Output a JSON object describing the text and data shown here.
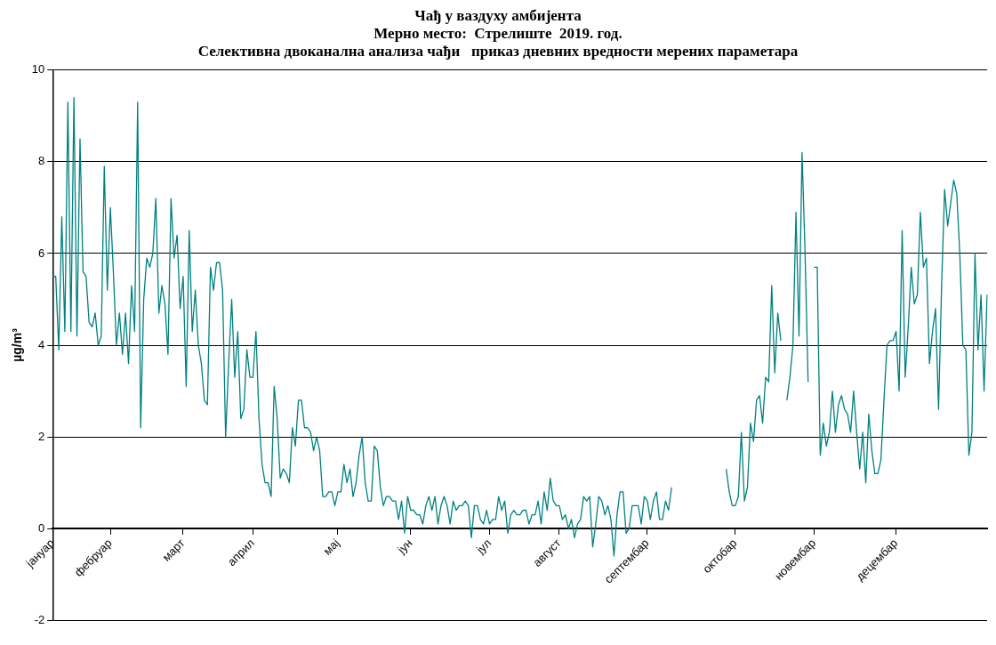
{
  "chart_data": {
    "type": "line",
    "title": "Чађ у ваздуху амбијента",
    "subtitle": "Мерно место:  Стрелиште  2019. год.\nСелективна двоканална анализа чађи   приказ дневних вредности мерених параметара",
    "ylabel": "µg/m³",
    "categories": [
      "јануар",
      null,
      null,
      null,
      null,
      null,
      null,
      null,
      null,
      null,
      null,
      null,
      null,
      null,
      null,
      null,
      null,
      null,
      null,
      "фебруар",
      null,
      null,
      null,
      null,
      null,
      null,
      null,
      null,
      null,
      null,
      null,
      null,
      null,
      null,
      null,
      null,
      null,
      null,
      null,
      null,
      null,
      null,
      null,
      "март",
      null,
      null,
      null,
      null,
      null,
      null,
      null,
      null,
      null,
      null,
      null,
      null,
      null,
      null,
      null,
      null,
      null,
      null,
      null,
      null,
      null,
      null,
      "април",
      null,
      null,
      null,
      null,
      null,
      null,
      null,
      null,
      null,
      null,
      null,
      null,
      null,
      null,
      null,
      null,
      null,
      null,
      null,
      null,
      null,
      null,
      null,
      null,
      null,
      null,
      null,
      "мај",
      null,
      null,
      null,
      null,
      null,
      null,
      null,
      null,
      null,
      null,
      null,
      null,
      null,
      null,
      null,
      null,
      null,
      null,
      null,
      null,
      null,
      null,
      null,
      "јун",
      null,
      null,
      null,
      null,
      null,
      null,
      null,
      null,
      null,
      null,
      null,
      null,
      null,
      null,
      null,
      null,
      null,
      null,
      null,
      null,
      null,
      null,
      null,
      null,
      null,
      "јул",
      null,
      null,
      null,
      null,
      null,
      null,
      null,
      null,
      null,
      null,
      null,
      null,
      null,
      null,
      null,
      null,
      null,
      null,
      null,
      null,
      null,
      null,
      "август",
      null,
      null,
      null,
      null,
      null,
      null,
      null,
      null,
      null,
      null,
      null,
      null,
      null,
      null,
      null,
      null,
      null,
      null,
      null,
      null,
      null,
      null,
      null,
      null,
      null,
      null,
      null,
      null,
      "септембар",
      null,
      null,
      null,
      null,
      null,
      null,
      null,
      null,
      null,
      null,
      null,
      null,
      null,
      null,
      null,
      null,
      null,
      null,
      null,
      null,
      null,
      null,
      null,
      null,
      null,
      null,
      null,
      null,
      "октобар",
      null,
      null,
      null,
      null,
      null,
      null,
      null,
      null,
      null,
      null,
      null,
      null,
      null,
      null,
      null,
      null,
      null,
      null,
      null,
      null,
      null,
      null,
      null,
      null,
      null,
      "новембар",
      null,
      null,
      null,
      null,
      null,
      null,
      null,
      null,
      null,
      null,
      null,
      null,
      null,
      null,
      null,
      null,
      null,
      null,
      null,
      null,
      null,
      null,
      null,
      null,
      null,
      null,
      "децембар",
      null,
      null,
      null,
      null,
      null,
      null,
      null,
      null,
      null,
      null,
      null,
      null,
      null,
      null,
      null,
      null,
      null,
      null,
      null,
      null,
      null,
      null,
      null,
      null,
      null,
      null,
      null,
      null,
      null,
      null
    ],
    "series": [
      {
        "color": "#008080",
        "values": [
          5.5,
          5.5,
          3.9,
          6.8,
          4.3,
          9.3,
          4.3,
          9.4,
          4.2,
          8.5,
          5.6,
          5.5,
          4.5,
          4.4,
          4.7,
          4.0,
          4.2,
          7.9,
          5.2,
          7.0,
          5.6,
          4.0,
          4.7,
          3.8,
          4.7,
          3.6,
          5.3,
          4.3,
          9.3,
          2.2,
          5.0,
          5.9,
          5.7,
          6.0,
          7.2,
          4.7,
          5.3,
          4.9,
          3.8,
          7.2,
          5.9,
          6.4,
          4.8,
          5.5,
          3.1,
          6.5,
          4.3,
          5.2,
          4.0,
          3.6,
          2.8,
          2.7,
          5.7,
          5.2,
          5.8,
          5.8,
          5.2,
          2.0,
          3.6,
          5.0,
          3.3,
          4.3,
          2.4,
          2.6,
          3.9,
          3.3,
          3.3,
          4.3,
          2.4,
          1.4,
          1.0,
          1.0,
          0.7,
          3.1,
          2.4,
          1.1,
          1.3,
          1.2,
          1.0,
          2.2,
          1.8,
          2.8,
          2.8,
          2.2,
          2.2,
          2.1,
          1.7,
          2.0,
          1.7,
          0.7,
          0.7,
          0.8,
          0.8,
          0.5,
          0.8,
          0.8,
          1.4,
          1.0,
          1.3,
          0.7,
          1.0,
          1.6,
          2.0,
          1.0,
          0.6,
          0.6,
          1.8,
          1.7,
          0.9,
          0.5,
          0.7,
          0.7,
          0.6,
          0.6,
          0.2,
          0.6,
          -0.1,
          0.7,
          0.4,
          0.4,
          0.3,
          0.3,
          0.1,
          0.5,
          0.7,
          0.4,
          0.7,
          0.1,
          0.5,
          0.7,
          0.5,
          0.1,
          0.6,
          0.4,
          0.5,
          0.5,
          0.6,
          0.5,
          -0.2,
          0.5,
          0.5,
          0.2,
          0.1,
          0.4,
          0.1,
          0.2,
          0.2,
          0.7,
          0.4,
          0.6,
          -0.1,
          0.3,
          0.4,
          0.3,
          0.3,
          0.4,
          0.4,
          0.1,
          0.3,
          0.3,
          0.6,
          0.1,
          0.8,
          0.4,
          1.1,
          0.6,
          0.5,
          0.5,
          0.2,
          0.3,
          0.0,
          0.2,
          -0.2,
          0.1,
          0.2,
          0.7,
          0.6,
          0.7,
          -0.4,
          0.1,
          0.7,
          0.6,
          0.3,
          0.5,
          0.2,
          -0.6,
          0.3,
          0.8,
          0.8,
          -0.1,
          0.0,
          0.5,
          0.5,
          0.5,
          0.1,
          0.7,
          0.6,
          0.2,
          0.6,
          0.8,
          0.2,
          0.2,
          0.6,
          0.4,
          0.9,
          null,
          null,
          null,
          null,
          null,
          null,
          null,
          null,
          null,
          null,
          null,
          null,
          null,
          null,
          null,
          null,
          null,
          1.3,
          0.8,
          0.5,
          0.5,
          0.7,
          2.1,
          0.6,
          0.9,
          2.3,
          1.9,
          2.8,
          2.9,
          2.3,
          3.3,
          3.2,
          5.3,
          3.4,
          4.7,
          4.1,
          null,
          2.8,
          3.3,
          4.0,
          6.9,
          4.2,
          8.2,
          6.0,
          3.2,
          null,
          5.7,
          5.7,
          1.6,
          2.3,
          1.8,
          2.1,
          3.0,
          2.1,
          2.7,
          2.9,
          2.6,
          2.5,
          2.1,
          3.0,
          2.1,
          1.3,
          2.1,
          1.0,
          2.5,
          1.7,
          1.2,
          1.2,
          1.5,
          2.8,
          4.0,
          4.1,
          4.1,
          4.3,
          3.0,
          6.5,
          3.3,
          4.4,
          5.7,
          4.9,
          5.1,
          6.9,
          5.7,
          5.9,
          3.6,
          4.3,
          4.8,
          2.6,
          5.3,
          7.4,
          6.6,
          7.1,
          7.6,
          7.3,
          6.0,
          4.0,
          3.9,
          1.6,
          2.1,
          6.0,
          3.9,
          5.1,
          3.0,
          5.1
        ]
      }
    ],
    "ylim": [
      -2,
      10
    ],
    "yticks": [
      -2,
      0,
      2,
      4,
      6,
      8,
      10
    ],
    "grid": "y",
    "legend": false,
    "marker": "none",
    "line_style": "solid"
  }
}
